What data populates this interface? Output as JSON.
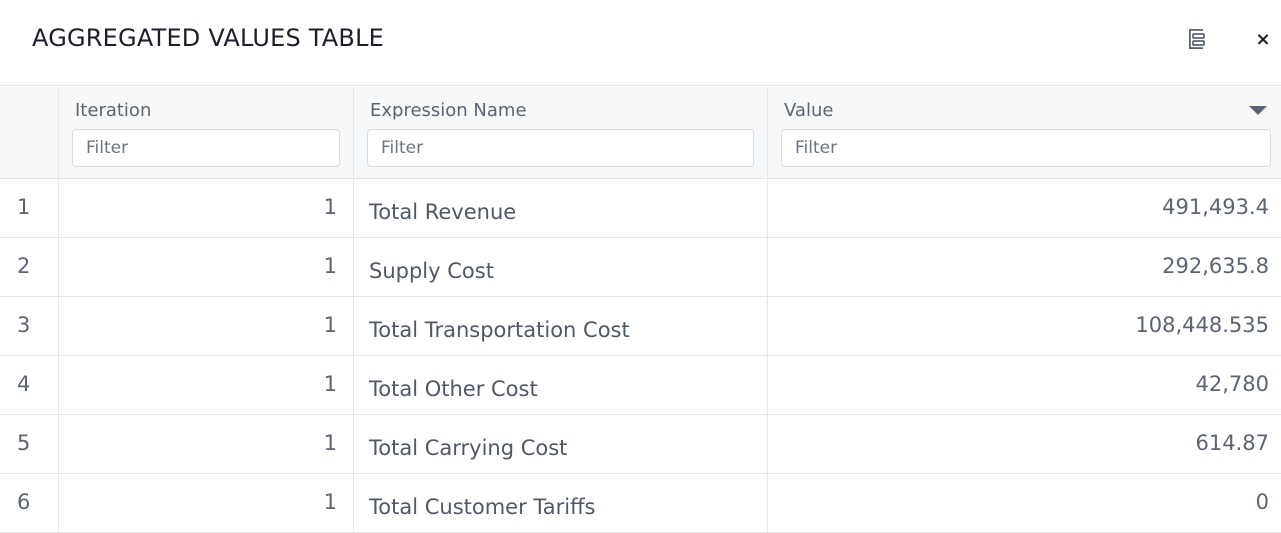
{
  "dialog": {
    "title": "AGGREGATED VALUES TABLE",
    "columns_icon": "columns-icon",
    "close_icon": "close-icon",
    "close_glyph": "×"
  },
  "table": {
    "columns": [
      {
        "key": "iteration",
        "label": "Iteration",
        "filter_placeholder": "Filter"
      },
      {
        "key": "expression_name",
        "label": "Expression Name",
        "filter_placeholder": "Filter"
      },
      {
        "key": "value",
        "label": "Value",
        "filter_placeholder": "Filter",
        "sort_icon": "sort-descending-icon"
      }
    ],
    "rows": [
      {
        "index": "1",
        "iteration": "1",
        "expression_name": "Total Revenue",
        "value": "491,493.4"
      },
      {
        "index": "2",
        "iteration": "1",
        "expression_name": "Supply Cost",
        "value": "292,635.8"
      },
      {
        "index": "3",
        "iteration": "1",
        "expression_name": "Total Transportation Cost",
        "value": "108,448.535"
      },
      {
        "index": "4",
        "iteration": "1",
        "expression_name": "Total Other Cost",
        "value": "42,780"
      },
      {
        "index": "5",
        "iteration": "1",
        "expression_name": "Total Carrying Cost",
        "value": "614.87"
      },
      {
        "index": "6",
        "iteration": "1",
        "expression_name": "Total Customer Tariffs",
        "value": "0"
      }
    ]
  },
  "colors": {
    "header_bg": "#f6f8fa",
    "border": "#e3e7eb",
    "text": "#5b6472"
  }
}
